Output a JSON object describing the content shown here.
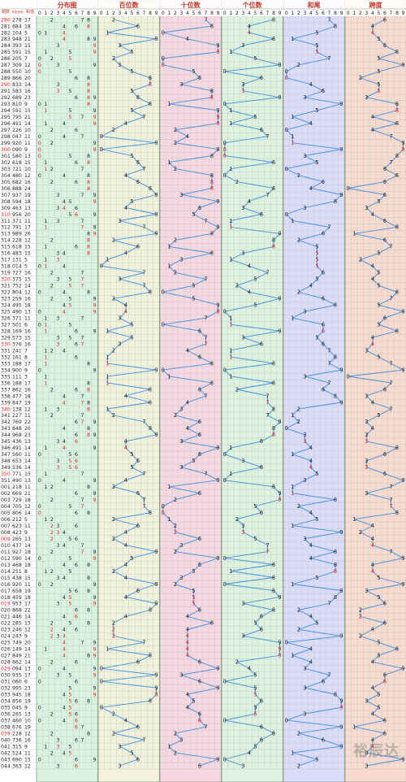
{
  "chart_data": {
    "type": "line",
    "headers": {
      "period": "期数",
      "number": "开奖号码",
      "sum": "和值",
      "distribution": "分布图",
      "hundreds": "百位数",
      "tens": "十位数",
      "units": "个位数",
      "sum_tail": "和尾",
      "span": "跨度"
    },
    "digit_labels": [
      "0",
      "1",
      "2",
      "3",
      "4",
      "5",
      "6",
      "7",
      "8",
      "9"
    ],
    "rows": [
      {
        "period": "280",
        "number": "278",
        "sum": "17"
      },
      {
        "period": "281",
        "number": "684",
        "sum": "18"
      },
      {
        "period": "282",
        "number": "104",
        "sum": "5"
      },
      {
        "period": "283",
        "number": "948",
        "sum": "21"
      },
      {
        "period": "284",
        "number": "393",
        "sum": "15"
      },
      {
        "period": "285",
        "number": "591",
        "sum": "15"
      },
      {
        "period": "286",
        "number": "205",
        "sum": "7"
      },
      {
        "period": "287",
        "number": "309",
        "sum": "12"
      },
      {
        "period": "288",
        "number": "550",
        "sum": "10"
      },
      {
        "period": "289",
        "number": "866",
        "sum": "20"
      },
      {
        "period": "290",
        "number": "833",
        "sum": "14"
      },
      {
        "period": "291",
        "number": "583",
        "sum": "16"
      },
      {
        "period": "292",
        "number": "689",
        "sum": "23"
      },
      {
        "period": "293",
        "number": "810",
        "sum": "9"
      },
      {
        "period": "294",
        "number": "591",
        "sum": "15"
      },
      {
        "period": "295",
        "number": "795",
        "sum": "21"
      },
      {
        "period": "296",
        "number": "491",
        "sum": "14"
      },
      {
        "period": "297",
        "number": "226",
        "sum": "10"
      },
      {
        "period": "298",
        "number": "047",
        "sum": "11"
      },
      {
        "period": "299",
        "number": "920",
        "sum": "11"
      },
      {
        "period": "300",
        "number": "090",
        "sum": "9"
      },
      {
        "period": "301",
        "number": "580",
        "sum": "13"
      },
      {
        "period": "302",
        "number": "618",
        "sum": "15"
      },
      {
        "period": "303",
        "number": "721",
        "sum": "10"
      },
      {
        "period": "304",
        "number": "480",
        "sum": "12"
      },
      {
        "period": "305",
        "number": "682",
        "sum": "16"
      },
      {
        "period": "306",
        "number": "888",
        "sum": "24"
      },
      {
        "period": "307",
        "number": "937",
        "sum": "19"
      },
      {
        "period": "308",
        "number": "594",
        "sum": "18"
      },
      {
        "period": "309",
        "number": "463",
        "sum": "13"
      },
      {
        "period": "310",
        "number": "956",
        "sum": "20"
      },
      {
        "period": "311",
        "number": "371",
        "sum": "11"
      },
      {
        "period": "312",
        "number": "791",
        "sum": "17"
      },
      {
        "period": "313",
        "number": "989",
        "sum": "26"
      },
      {
        "period": "314",
        "number": "228",
        "sum": "12"
      },
      {
        "period": "315",
        "number": "618",
        "sum": "15"
      },
      {
        "period": "316",
        "number": "483",
        "sum": "15"
      },
      {
        "period": "317",
        "number": "131",
        "sum": "5"
      },
      {
        "period": "318",
        "number": "014",
        "sum": "5"
      },
      {
        "period": "319",
        "number": "727",
        "sum": "16"
      },
      {
        "period": "320",
        "number": "375",
        "sum": "15"
      },
      {
        "period": "321",
        "number": "752",
        "sum": "14"
      },
      {
        "period": "322",
        "number": "804",
        "sum": "12"
      },
      {
        "period": "323",
        "number": "259",
        "sum": "16"
      },
      {
        "period": "324",
        "number": "495",
        "sum": "18"
      },
      {
        "period": "325",
        "number": "490",
        "sum": "13"
      },
      {
        "period": "326",
        "number": "371",
        "sum": "11"
      },
      {
        "period": "327",
        "number": "501",
        "sum": "6"
      },
      {
        "period": "328",
        "number": "169",
        "sum": "16"
      },
      {
        "period": "329",
        "number": "573",
        "sum": "15"
      },
      {
        "period": "330",
        "number": "376",
        "sum": "16"
      },
      {
        "period": "331",
        "number": "241",
        "sum": "7"
      },
      {
        "period": "332",
        "number": "161",
        "sum": "8"
      },
      {
        "period": "333",
        "number": "188",
        "sum": "17"
      },
      {
        "period": "334",
        "number": "900",
        "sum": "9"
      },
      {
        "period": "335",
        "number": "111",
        "sum": "3"
      },
      {
        "period": "336",
        "number": "188",
        "sum": "17"
      },
      {
        "period": "337",
        "number": "862",
        "sum": "16"
      },
      {
        "period": "338",
        "number": "477",
        "sum": "18"
      },
      {
        "period": "339",
        "number": "847",
        "sum": "19"
      },
      {
        "period": "340",
        "number": "138",
        "sum": "12"
      },
      {
        "period": "341",
        "number": "227",
        "sum": "11"
      },
      {
        "period": "342",
        "number": "769",
        "sum": "22"
      },
      {
        "period": "343",
        "number": "848",
        "sum": "20"
      },
      {
        "period": "344",
        "number": "968",
        "sum": "23"
      },
      {
        "period": "345",
        "number": "436",
        "sum": "13"
      },
      {
        "period": "346",
        "number": "491",
        "sum": "14"
      },
      {
        "period": "347",
        "number": "560",
        "sum": "11"
      },
      {
        "period": "348",
        "number": "653",
        "sum": "14"
      },
      {
        "period": "349",
        "number": "536",
        "sum": "14"
      },
      {
        "period": "350",
        "number": "771",
        "sum": "15"
      },
      {
        "period": "351",
        "number": "490",
        "sum": "13"
      },
      {
        "period": "001",
        "number": "218",
        "sum": "11"
      },
      {
        "period": "002",
        "number": "669",
        "sum": "21"
      },
      {
        "period": "003",
        "number": "729",
        "sum": "18"
      },
      {
        "period": "004",
        "number": "705",
        "sum": "12"
      },
      {
        "period": "005",
        "number": "806",
        "sum": "14"
      },
      {
        "period": "006",
        "number": "212",
        "sum": "5"
      },
      {
        "period": "007",
        "number": "623",
        "sum": "11"
      },
      {
        "period": "008",
        "number": "423",
        "sum": "9"
      },
      {
        "period": "009",
        "number": "265",
        "sum": "13"
      },
      {
        "period": "010",
        "number": "437",
        "sum": "14"
      },
      {
        "period": "011",
        "number": "927",
        "sum": "18"
      },
      {
        "period": "012",
        "number": "590",
        "sum": "14"
      },
      {
        "period": "013",
        "number": "468",
        "sum": "18"
      },
      {
        "period": "014",
        "number": "251",
        "sum": "8"
      },
      {
        "period": "015",
        "number": "438",
        "sum": "15"
      },
      {
        "period": "016",
        "number": "920",
        "sum": "11"
      },
      {
        "period": "017",
        "number": "658",
        "sum": "19"
      },
      {
        "period": "018",
        "number": "459",
        "sum": "18"
      },
      {
        "period": "019",
        "number": "953",
        "sum": "17"
      },
      {
        "period": "020",
        "number": "868",
        "sum": "22"
      },
      {
        "period": "021",
        "number": "446",
        "sum": "14"
      },
      {
        "period": "022",
        "number": "285",
        "sum": "15"
      },
      {
        "period": "023",
        "number": "246",
        "sum": "12"
      },
      {
        "period": "024",
        "number": "243",
        "sum": "9"
      },
      {
        "period": "025",
        "number": "749",
        "sum": "20"
      },
      {
        "period": "026",
        "number": "149",
        "sum": "14"
      },
      {
        "period": "027",
        "number": "849",
        "sum": "21"
      },
      {
        "period": "028",
        "number": "662",
        "sum": "14"
      },
      {
        "period": "029",
        "number": "094",
        "sum": "13"
      },
      {
        "period": "030",
        "number": "935",
        "sum": "17"
      },
      {
        "period": "031",
        "number": "060",
        "sum": "6"
      },
      {
        "period": "032",
        "number": "995",
        "sum": "23"
      },
      {
        "period": "033",
        "number": "945",
        "sum": "18"
      },
      {
        "period": "034",
        "number": "856",
        "sum": "19"
      },
      {
        "period": "035",
        "number": "045",
        "sum": "9"
      },
      {
        "period": "036",
        "number": "265",
        "sum": "13"
      },
      {
        "period": "037",
        "number": "460",
        "sum": "10"
      },
      {
        "period": "038",
        "number": "676",
        "sum": "19"
      },
      {
        "period": "039",
        "number": "228",
        "sum": "12"
      },
      {
        "period": "040",
        "number": "736",
        "sum": "16"
      },
      {
        "period": "041",
        "number": "315",
        "sum": "9"
      },
      {
        "period": "042",
        "number": "524",
        "sum": "11"
      },
      {
        "period": "043",
        "number": "690",
        "sum": "15"
      },
      {
        "period": "044",
        "number": "363",
        "sum": "12"
      }
    ],
    "colors": {
      "line": "#3f8fe0",
      "digit_normal": "#1a1a1a",
      "digit_repeat": "#e02020",
      "digit_special": "#1f3fe0",
      "grid": "#b9c9b9",
      "period_highlight": "#e02020",
      "panel_distribution": "#d9f2e2",
      "panel_hundreds": "#f2f2dc",
      "panel_tens": "#f7d7e2",
      "panel_units": "#dff1df",
      "panel_sum_tail": "#dcdcfa",
      "panel_span": "#f9dad0",
      "header_bg": "#ffffff",
      "header_text": "#c0392b"
    },
    "watermark": "裕辰达"
  }
}
